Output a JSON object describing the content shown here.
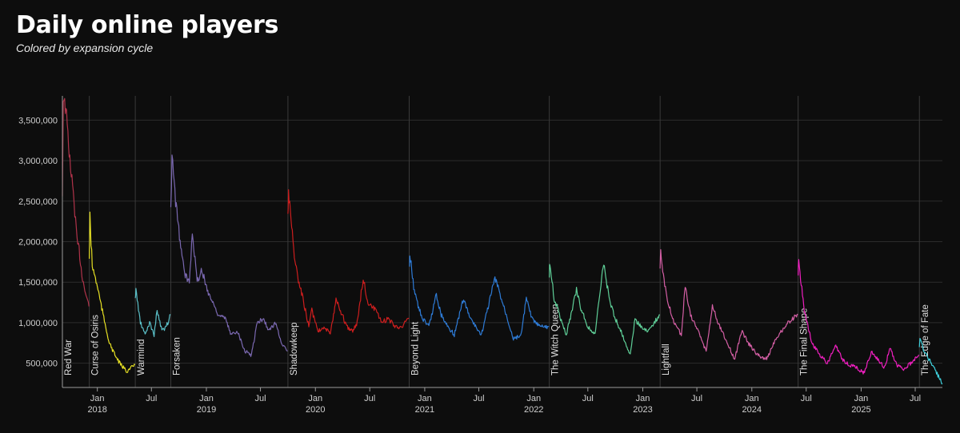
{
  "page": {
    "title": "Daily online players",
    "subtitle": "Colored by expansion cycle"
  },
  "chart_data": {
    "type": "line",
    "title": "Daily online players",
    "subtitle": "Colored by expansion cycle",
    "xlabel": "",
    "ylabel": "",
    "xlim": [
      "2017-09-06",
      "2025-09-30"
    ],
    "ylim": [
      200000,
      3800000
    ],
    "grid": true,
    "legend": "none",
    "y_ticks": [
      500000,
      1000000,
      1500000,
      2000000,
      2500000,
      3000000,
      3500000
    ],
    "y_tick_labels": [
      "500,000",
      "1,000,000",
      "1,500,000",
      "2,000,000",
      "2,500,000",
      "3,000,000",
      "3,500,000"
    ],
    "x_ticks": [
      {
        "date": "2018-01-01",
        "label": "Jan",
        "year": "2018"
      },
      {
        "date": "2018-07-01",
        "label": "Jul",
        "year": ""
      },
      {
        "date": "2019-01-01",
        "label": "Jan",
        "year": "2019"
      },
      {
        "date": "2019-07-01",
        "label": "Jul",
        "year": ""
      },
      {
        "date": "2020-01-01",
        "label": "Jan",
        "year": "2020"
      },
      {
        "date": "2020-07-01",
        "label": "Jul",
        "year": ""
      },
      {
        "date": "2021-01-01",
        "label": "Jan",
        "year": "2021"
      },
      {
        "date": "2021-07-01",
        "label": "Jul",
        "year": ""
      },
      {
        "date": "2022-01-01",
        "label": "Jan",
        "year": "2022"
      },
      {
        "date": "2022-07-01",
        "label": "Jul",
        "year": ""
      },
      {
        "date": "2023-01-01",
        "label": "Jan",
        "year": "2023"
      },
      {
        "date": "2023-07-01",
        "label": "Jul",
        "year": ""
      },
      {
        "date": "2024-01-01",
        "label": "Jan",
        "year": "2024"
      },
      {
        "date": "2024-07-01",
        "label": "Jul",
        "year": ""
      },
      {
        "date": "2025-01-01",
        "label": "Jan",
        "year": "2025"
      },
      {
        "date": "2025-07-01",
        "label": "Jul",
        "year": ""
      }
    ],
    "events": [
      {
        "name": "Red War",
        "date": "2017-09-06"
      },
      {
        "name": "Curse of Osiris",
        "date": "2017-12-05"
      },
      {
        "name": "Warmind",
        "date": "2018-05-08"
      },
      {
        "name": "Forsaken",
        "date": "2018-09-04"
      },
      {
        "name": "Shadowkeep",
        "date": "2019-10-01"
      },
      {
        "name": "Beyond Light",
        "date": "2020-11-10"
      },
      {
        "name": "The Witch Queen",
        "date": "2022-02-22"
      },
      {
        "name": "Lightfall",
        "date": "2023-02-28"
      },
      {
        "name": "The Final Shape",
        "date": "2024-06-04"
      },
      {
        "name": "The Edge of Fate",
        "date": "2025-07-15"
      }
    ],
    "series": [
      {
        "color": "#b0334a",
        "points": [
          [
            "2017-09-06",
            2600000
          ],
          [
            "2017-09-09",
            3800000
          ],
          [
            "2017-09-20",
            3550000
          ],
          [
            "2017-10-01",
            3000000
          ],
          [
            "2017-10-15",
            2500000
          ],
          [
            "2017-10-25",
            2000000
          ],
          [
            "2017-11-01",
            1900000
          ],
          [
            "2017-11-10",
            1600000
          ],
          [
            "2017-11-20",
            1400000
          ],
          [
            "2017-12-04",
            1200000
          ]
        ]
      },
      {
        "color": "#e6e024",
        "points": [
          [
            "2017-12-05",
            1800000
          ],
          [
            "2017-12-07",
            2300000
          ],
          [
            "2017-12-15",
            1700000
          ],
          [
            "2018-01-01",
            1450000
          ],
          [
            "2018-01-20",
            1100000
          ],
          [
            "2018-02-10",
            750000
          ],
          [
            "2018-03-01",
            600000
          ],
          [
            "2018-03-20",
            480000
          ],
          [
            "2018-04-10",
            400000
          ],
          [
            "2018-05-07",
            480000
          ]
        ]
      },
      {
        "color": "#5bc0c8",
        "points": [
          [
            "2018-05-08",
            1300000
          ],
          [
            "2018-05-10",
            1400000
          ],
          [
            "2018-05-25",
            1000000
          ],
          [
            "2018-06-10",
            850000
          ],
          [
            "2018-06-25",
            1000000
          ],
          [
            "2018-07-10",
            850000
          ],
          [
            "2018-07-20",
            1150000
          ],
          [
            "2018-08-05",
            900000
          ],
          [
            "2018-08-20",
            950000
          ],
          [
            "2018-09-03",
            1100000
          ]
        ]
      },
      {
        "color": "#7a68b0",
        "points": [
          [
            "2018-09-04",
            2400000
          ],
          [
            "2018-09-08",
            3050000
          ],
          [
            "2018-09-20",
            2500000
          ],
          [
            "2018-10-05",
            2000000
          ],
          [
            "2018-10-20",
            1600000
          ],
          [
            "2018-11-05",
            1500000
          ],
          [
            "2018-11-15",
            2150000
          ],
          [
            "2018-12-01",
            1500000
          ],
          [
            "2018-12-15",
            1650000
          ],
          [
            "2019-01-10",
            1350000
          ],
          [
            "2019-02-10",
            1100000
          ],
          [
            "2019-03-05",
            1050000
          ],
          [
            "2019-03-25",
            850000
          ],
          [
            "2019-04-15",
            900000
          ],
          [
            "2019-05-10",
            650000
          ],
          [
            "2019-06-01",
            600000
          ],
          [
            "2019-06-20",
            1000000
          ],
          [
            "2019-07-10",
            1050000
          ],
          [
            "2019-07-30",
            900000
          ],
          [
            "2019-08-20",
            1000000
          ],
          [
            "2019-09-10",
            750000
          ],
          [
            "2019-09-30",
            650000
          ]
        ]
      },
      {
        "color": "#cc1e1e",
        "points": [
          [
            "2019-10-01",
            2300000
          ],
          [
            "2019-10-03",
            2650000
          ],
          [
            "2019-10-20",
            1900000
          ],
          [
            "2019-11-05",
            1500000
          ],
          [
            "2019-11-20",
            1300000
          ],
          [
            "2019-12-10",
            950000
          ],
          [
            "2019-12-20",
            1150000
          ],
          [
            "2020-01-10",
            900000
          ],
          [
            "2020-02-01",
            950000
          ],
          [
            "2020-02-20",
            850000
          ],
          [
            "2020-03-10",
            1300000
          ],
          [
            "2020-03-25",
            1150000
          ],
          [
            "2020-04-15",
            950000
          ],
          [
            "2020-05-05",
            900000
          ],
          [
            "2020-05-20",
            1000000
          ],
          [
            "2020-06-09",
            1550000
          ],
          [
            "2020-06-25",
            1250000
          ],
          [
            "2020-07-20",
            1150000
          ],
          [
            "2020-08-10",
            1000000
          ],
          [
            "2020-09-01",
            1050000
          ],
          [
            "2020-09-25",
            950000
          ],
          [
            "2020-10-15",
            950000
          ],
          [
            "2020-11-09",
            1050000
          ]
        ]
      },
      {
        "color": "#2e7bd6",
        "points": [
          [
            "2020-11-10",
            1650000
          ],
          [
            "2020-11-12",
            1850000
          ],
          [
            "2020-11-25",
            1450000
          ],
          [
            "2020-12-10",
            1200000
          ],
          [
            "2020-12-25",
            1050000
          ],
          [
            "2021-01-15",
            950000
          ],
          [
            "2021-02-09",
            1350000
          ],
          [
            "2021-02-25",
            1100000
          ],
          [
            "2021-03-20",
            950000
          ],
          [
            "2021-04-10",
            850000
          ],
          [
            "2021-05-11",
            1300000
          ],
          [
            "2021-05-28",
            1100000
          ],
          [
            "2021-06-20",
            950000
          ],
          [
            "2021-07-10",
            850000
          ],
          [
            "2021-08-24",
            1550000
          ],
          [
            "2021-09-10",
            1350000
          ],
          [
            "2021-10-01",
            1100000
          ],
          [
            "2021-10-25",
            800000
          ],
          [
            "2021-11-20",
            850000
          ],
          [
            "2021-12-07",
            1300000
          ],
          [
            "2021-12-25",
            1050000
          ],
          [
            "2022-01-20",
            950000
          ],
          [
            "2022-02-21",
            950000
          ]
        ]
      },
      {
        "color": "#5fcf98",
        "points": [
          [
            "2022-02-22",
            1600000
          ],
          [
            "2022-02-24",
            1750000
          ],
          [
            "2022-03-10",
            1300000
          ],
          [
            "2022-04-01",
            1050000
          ],
          [
            "2022-04-20",
            850000
          ],
          [
            "2022-05-24",
            1400000
          ],
          [
            "2022-06-10",
            1150000
          ],
          [
            "2022-07-01",
            950000
          ],
          [
            "2022-07-25",
            850000
          ],
          [
            "2022-08-23",
            1750000
          ],
          [
            "2022-09-10",
            1300000
          ],
          [
            "2022-10-01",
            1050000
          ],
          [
            "2022-10-25",
            850000
          ],
          [
            "2022-11-20",
            600000
          ],
          [
            "2022-12-06",
            1050000
          ],
          [
            "2022-12-25",
            950000
          ],
          [
            "2023-01-20",
            900000
          ],
          [
            "2023-02-27",
            1100000
          ]
        ]
      },
      {
        "color": "#d45fa5",
        "points": [
          [
            "2023-02-28",
            1700000
          ],
          [
            "2023-03-02",
            1850000
          ],
          [
            "2023-03-20",
            1350000
          ],
          [
            "2023-04-15",
            1000000
          ],
          [
            "2023-05-10",
            850000
          ],
          [
            "2023-05-23",
            1450000
          ],
          [
            "2023-06-10",
            1100000
          ],
          [
            "2023-07-10",
            850000
          ],
          [
            "2023-08-01",
            650000
          ],
          [
            "2023-08-22",
            1200000
          ],
          [
            "2023-09-10",
            1000000
          ],
          [
            "2023-10-10",
            750000
          ],
          [
            "2023-11-05",
            550000
          ],
          [
            "2023-11-28",
            900000
          ],
          [
            "2023-12-20",
            750000
          ],
          [
            "2024-01-20",
            600000
          ],
          [
            "2024-02-20",
            550000
          ],
          [
            "2024-03-20",
            800000
          ],
          [
            "2024-04-10",
            900000
          ],
          [
            "2024-05-01",
            1000000
          ],
          [
            "2024-06-03",
            1100000
          ]
        ]
      },
      {
        "color": "#ef1fbf",
        "points": [
          [
            "2024-06-04",
            1600000
          ],
          [
            "2024-06-06",
            1750000
          ],
          [
            "2024-06-25",
            1150000
          ],
          [
            "2024-07-20",
            750000
          ],
          [
            "2024-08-15",
            600000
          ],
          [
            "2024-09-10",
            500000
          ],
          [
            "2024-10-08",
            720000
          ],
          [
            "2024-10-30",
            550000
          ],
          [
            "2024-11-20",
            480000
          ],
          [
            "2024-12-15",
            450000
          ],
          [
            "2025-01-10",
            380000
          ],
          [
            "2025-02-04",
            640000
          ],
          [
            "2025-02-25",
            550000
          ],
          [
            "2025-03-20",
            450000
          ],
          [
            "2025-04-08",
            680000
          ],
          [
            "2025-04-30",
            480000
          ],
          [
            "2025-05-25",
            420000
          ],
          [
            "2025-06-10",
            480000
          ],
          [
            "2025-07-01",
            550000
          ],
          [
            "2025-07-14",
            600000
          ]
        ]
      },
      {
        "color": "#3fd0dc",
        "points": [
          [
            "2025-07-15",
            700000
          ],
          [
            "2025-07-17",
            800000
          ],
          [
            "2025-07-30",
            650000
          ],
          [
            "2025-08-15",
            550000
          ],
          [
            "2025-09-01",
            450000
          ],
          [
            "2025-09-15",
            350000
          ],
          [
            "2025-09-30",
            250000
          ]
        ]
      }
    ]
  }
}
